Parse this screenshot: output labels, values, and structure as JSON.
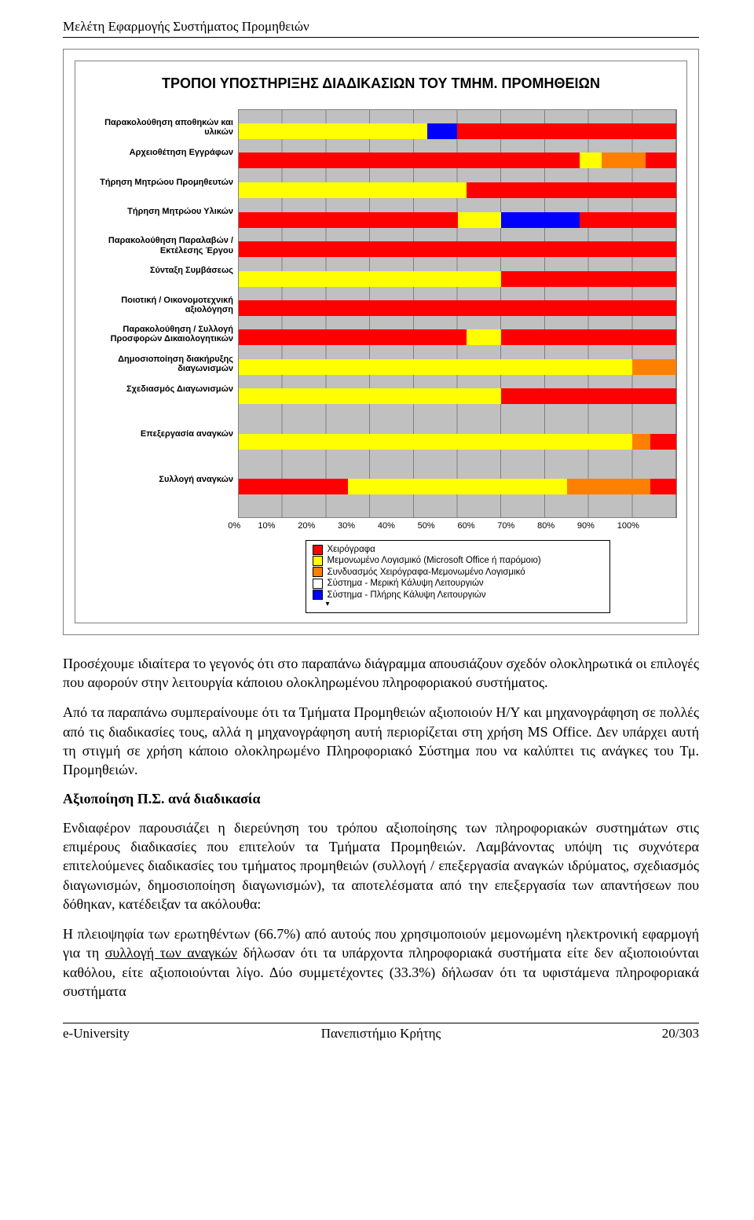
{
  "page_header": "Μελέτη Εφαρμογής Συστήματος Προμηθειών",
  "chart": {
    "type": "stacked-bar-horizontal",
    "title": "ΤΡΟΠΟΙ ΥΠΟΣΤΗΡΙΞΗΣ ΔΙΑΔΙΚΑΣΙΩΝ ΤΟΥ ΤΜΗΜ. ΠΡΟΜΗΘΕΙΩΝ",
    "plot_bg": "#c0c0c0",
    "grid_color": "#808080",
    "series_colors": {
      "s1": "#ff0000",
      "s2": "#ffff00",
      "s3": "#ff8000",
      "s4": "#ffffff",
      "s5": "#0000ff"
    },
    "categories": [
      "Παρακολούθηση αποθηκών και υλικών",
      "Αρχειοθέτηση Εγγράφων",
      "Τήρηση Μητρώου Προμηθευτών",
      "Τήρηση Μητρώου Υλικών",
      "Παρακολούθηση Παραλαβών / Εκτέλεσης Έργου",
      "Σύνταξη Συμβάσεως",
      "Ποιοτική / Οικονομοτεχνική αξιολόγηση",
      "Παρακολούθηση / Συλλογή Προσφορών Δικαιολογητικών",
      "Δημοσιοποίηση διακήρυξης διαγωνισμών",
      "Σχεδιασμός Διαγωνισμών",
      "Επεξεργασία αναγκών",
      "Συλλογή αναγκών"
    ],
    "row_positions_pct": [
      3.3,
      10.5,
      17.8,
      25.0,
      32.2,
      39.5,
      46.7,
      53.9,
      61.2,
      68.4,
      79.5,
      90.6
    ],
    "bars": [
      [
        [
          43,
          "s2"
        ],
        [
          7,
          "s5"
        ],
        [
          50,
          "s1"
        ]
      ],
      [
        [
          78,
          "s1"
        ],
        [
          5,
          "s2"
        ],
        [
          10,
          "s3"
        ],
        [
          7,
          "s1"
        ]
      ],
      [
        [
          52,
          "s2"
        ],
        [
          48,
          "s1"
        ]
      ],
      [
        [
          50,
          "s1"
        ],
        [
          10,
          "s2"
        ],
        [
          18,
          "s5"
        ],
        [
          22,
          "s1"
        ]
      ],
      [
        [
          100,
          "s1"
        ]
      ],
      [
        [
          60,
          "s2"
        ],
        [
          40,
          "s1"
        ]
      ],
      [
        [
          100,
          "s1"
        ]
      ],
      [
        [
          52,
          "s1"
        ],
        [
          8,
          "s2"
        ],
        [
          40,
          "s1"
        ]
      ],
      [
        [
          90,
          "s2"
        ],
        [
          10,
          "s3"
        ]
      ],
      [
        [
          60,
          "s2"
        ],
        [
          40,
          "s1"
        ]
      ],
      [
        [
          90,
          "s2"
        ],
        [
          4,
          "s3"
        ],
        [
          6,
          "s1"
        ]
      ],
      [
        [
          25,
          "s1"
        ],
        [
          50,
          "s2"
        ],
        [
          19,
          "s3"
        ],
        [
          6,
          "s1"
        ]
      ]
    ],
    "x_ticks": [
      "0%",
      "10%",
      "20%",
      "30%",
      "40%",
      "50%",
      "60%",
      "70%",
      "80%",
      "90%",
      "100%"
    ],
    "legend": [
      {
        "color": "#ff0000",
        "label": "Χειρόγραφα"
      },
      {
        "color": "#ffff00",
        "label": "Μεμονωμένο Λογισμικό (Microsoft Office ή παρόμοιο)"
      },
      {
        "color": "#ff8000",
        "label": "Συνδυασμός Χειρόγραφα-Μεμονωμένο Λογισμικό"
      },
      {
        "color": "#ffffff",
        "label": "Σύστημα - Μερική Κάλυψη Λειτουργιών"
      },
      {
        "color": "#0000ff",
        "label": "Σύστημα - Πλήρης Κάλυψη Λειτουργιών"
      }
    ]
  },
  "body": {
    "p1": "Προσέχουμε ιδιαίτερα το γεγονός ότι στο παραπάνω διάγραμμα απουσιάζουν σχεδόν ολοκληρωτικά οι επιλογές που αφορούν   στην λειτουργία κάποιου ολοκληρωμένου πληροφοριακού συστήματος.",
    "p2": "Από τα παραπάνω συμπεραίνουμε ότι τα Τμήματα Προμηθειών αξιοποιούν Η/Υ και μηχανογράφηση σε πολλές από τις διαδικασίες τους, αλλά η μηχανογράφηση αυτή περιορίζεται στη χρήση MS Office. Δεν υπάρχει αυτή τη στιγμή σε χρήση κάποιο ολοκληρωμένο Πληροφοριακό Σύστημα που να καλύπτει τις ανάγκες του Τμ. Προμηθειών.",
    "h1": "Αξιοποίηση Π.Σ. ανά διαδικασία",
    "p3": "Ενδιαφέρον παρουσιάζει η διερεύνηση του τρόπου αξιοποίησης των πληροφοριακών συστημάτων στις επιμέρους διαδικασίες που επιτελούν τα Τμήματα Προμηθειών. Λαμβάνοντας υπόψη τις συχνότερα επιτελούμενες διαδικασίες του τμήματος προμηθειών (συλλογή / επεξεργασία αναγκών ιδρύματος, σχεδιασμός διαγωνισμών, δημοσιοποίηση διαγωνισμών), τα αποτελέσματα από την επεξεργασία των απαντήσεων που δόθηκαν, κατέδειξαν τα ακόλουθα:",
    "p4_pre": "Η πλειοψηφία των ερωτηθέντων (66.7%) από αυτούς που χρησιμοποιούν μεμονωμένη ηλεκτρονική εφαρμογή για τη ",
    "p4_u": "συλλογή των αναγκών",
    "p4_post": " δήλωσαν ότι τα υπάρχοντα πληροφοριακά συστήματα είτε δεν αξιοποιούνται καθόλου, είτε αξιοποιούνται λίγο. Δύο συμμετέχοντες (33.3%) δήλωσαν ότι τα υφιστάμενα πληροφοριακά συστήματα"
  },
  "footer": {
    "left": "e-University",
    "center": "Πανεπιστήμιο Κρήτης",
    "right": "20/303"
  }
}
